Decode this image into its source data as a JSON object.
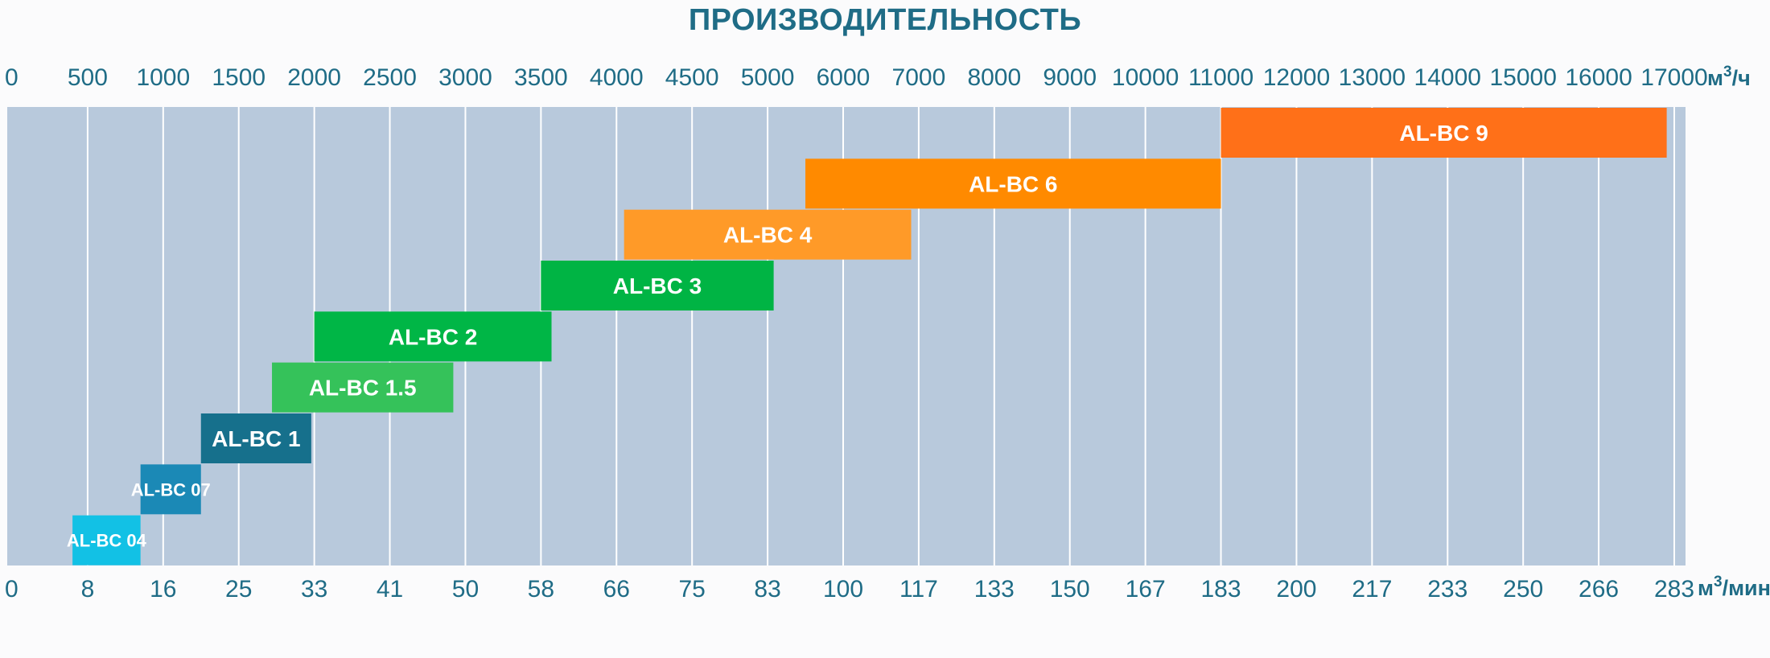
{
  "chart_data": {
    "type": "bar",
    "title": "ПРОИЗВОДИТЕЛЬНОСТЬ",
    "top_axis": {
      "ticks": [
        "0",
        "500",
        "1000",
        "1500",
        "2000",
        "2500",
        "3000",
        "3500",
        "4000",
        "4500",
        "5000",
        "6000",
        "7000",
        "8000",
        "9000",
        "10000",
        "11000",
        "12000",
        "13000",
        "14000",
        "15000",
        "16000",
        "17000"
      ],
      "unit_base": "м",
      "unit_sup": "3",
      "unit_tail": "/ч"
    },
    "bottom_axis": {
      "ticks": [
        "0",
        "8",
        "16",
        "25",
        "33",
        "41",
        "50",
        "58",
        "66",
        "75",
        "83",
        "100",
        "117",
        "133",
        "150",
        "167",
        "183",
        "200",
        "217",
        "233",
        "250",
        "266",
        "283"
      ],
      "unit_base": "м",
      "unit_sup": "3",
      "unit_tail": "/мин"
    },
    "grid": true,
    "colors": {
      "background": "#b8c9dc",
      "gridline": "#ffffff",
      "axis_text": "#1f6c86"
    },
    "series": [
      {
        "label": "AL-BC 04",
        "min": 400,
        "max": 850,
        "color": "#12c1e5"
      },
      {
        "label": "AL-BC 07",
        "min": 850,
        "max": 1250,
        "color": "#1b89b6"
      },
      {
        "label": "AL-BC 1",
        "min": 1250,
        "max": 1980,
        "color": "#16708c"
      },
      {
        "label": "AL-BC 1.5",
        "min": 1720,
        "max": 2920,
        "color": "#35c25a"
      },
      {
        "label": "AL-BC 2",
        "min": 2000,
        "max": 3570,
        "color": "#00b646"
      },
      {
        "label": "AL-BC 3",
        "min": 3500,
        "max": 5080,
        "color": "#00b444"
      },
      {
        "label": "AL-BC 4",
        "min": 4050,
        "max": 6900,
        "color": "#ff9a28"
      },
      {
        "label": "AL-BC 6",
        "min": 5500,
        "max": 11000,
        "color": "#ff8a00"
      },
      {
        "label": "AL-BC 9",
        "min": 11000,
        "max": 16900,
        "color": "#ff7018"
      }
    ]
  }
}
